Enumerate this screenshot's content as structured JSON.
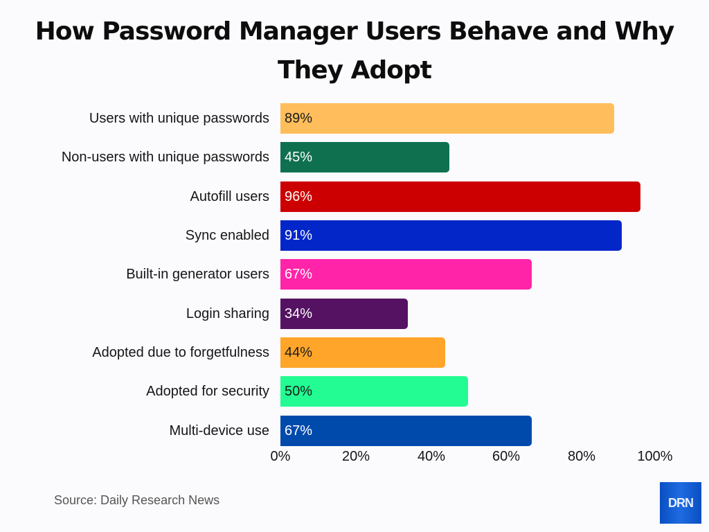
{
  "header": {
    "title_line1": "How Password Manager Users Behave and Why",
    "title_line2": "They Adopt"
  },
  "footer": {
    "source": "Source: Daily Research News",
    "logo_text": "DRN"
  },
  "axis": {
    "ticks": [
      "0%",
      "20%",
      "40%",
      "60%",
      "80%",
      "100%"
    ]
  },
  "bars": [
    {
      "label": "Users with unique passwords",
      "value_label": "89%",
      "value": 89,
      "color": "#ffbd5c",
      "text_color": "#1a1a1a"
    },
    {
      "label": "Non-users with unique passwords",
      "value_label": "45%",
      "value": 45,
      "color": "#0f7050",
      "text_color": "#ffffff"
    },
    {
      "label": "Autofill users",
      "value_label": "96%",
      "value": 96,
      "color": "#cc0000",
      "text_color": "#ffffff"
    },
    {
      "label": "Sync enabled",
      "value_label": "91%",
      "value": 91,
      "color": "#0226c8",
      "text_color": "#ffffff"
    },
    {
      "label": "Built-in generator users",
      "value_label": "67%",
      "value": 67,
      "color": "#ff24a8",
      "text_color": "#ffffff"
    },
    {
      "label": "Login sharing",
      "value_label": "34%",
      "value": 34,
      "color": "#551262",
      "text_color": "#ffffff"
    },
    {
      "label": "Adopted due to forgetfulness",
      "value_label": "44%",
      "value": 44,
      "color": "#ffa52a",
      "text_color": "#1a1a1a"
    },
    {
      "label": "Adopted for security",
      "value_label": "50%",
      "value": 50,
      "color": "#22fc92",
      "text_color": "#1a1a1a"
    },
    {
      "label": "Multi-device use",
      "value_label": "67%",
      "value": 67,
      "color": "#004aac",
      "text_color": "#ffffff"
    }
  ],
  "chart_data": {
    "type": "bar",
    "orientation": "horizontal",
    "title": "How Password Manager Users Behave and Why They Adopt",
    "categories": [
      "Users with unique passwords",
      "Non-users with unique passwords",
      "Autofill users",
      "Sync enabled",
      "Built-in generator users",
      "Login sharing",
      "Adopted due to forgetfulness",
      "Adopted for security",
      "Multi-device use"
    ],
    "values": [
      89,
      45,
      96,
      91,
      67,
      34,
      44,
      50,
      67
    ],
    "xlabel": "",
    "ylabel": "",
    "xlim": [
      0,
      100
    ],
    "x_ticks": [
      "0%",
      "20%",
      "40%",
      "60%",
      "80%",
      "100%"
    ],
    "data_labels": true,
    "grid": false,
    "legend": "none",
    "source": "Source: Daily Research News"
  }
}
